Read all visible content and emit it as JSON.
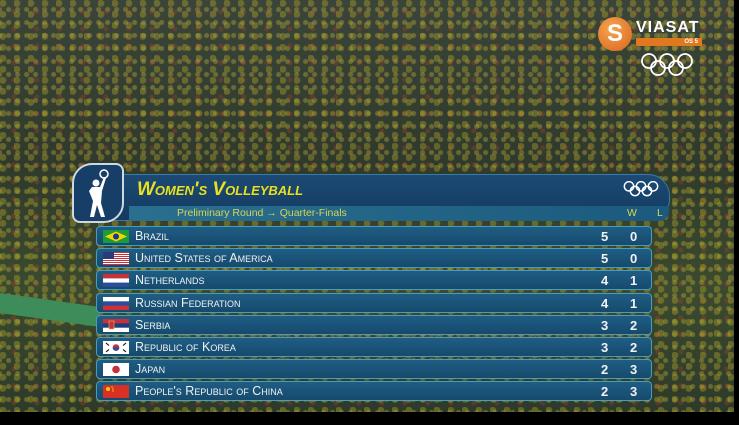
{
  "broadcaster": {
    "name": "VIASAT",
    "channel": "OS 5",
    "icon": "viasat-logo"
  },
  "graphic": {
    "title": "Women's Volleyball",
    "round": "Preliminary Round → Quarter-Finals",
    "col_w": "W",
    "col_l": "L",
    "icon": "volleyball-pictogram",
    "standings": [
      {
        "country": "Brazil",
        "flag": "brazil",
        "w": "5",
        "l": "0"
      },
      {
        "country": "United States of America",
        "flag": "usa",
        "w": "5",
        "l": "0"
      },
      {
        "country": "Netherlands",
        "flag": "netherlands",
        "w": "4",
        "l": "1"
      },
      {
        "country": "Russian Federation",
        "flag": "russia",
        "w": "4",
        "l": "1"
      },
      {
        "country": "Serbia",
        "flag": "serbia",
        "w": "3",
        "l": "2"
      },
      {
        "country": "Republic of Korea",
        "flag": "korea",
        "w": "3",
        "l": "2"
      },
      {
        "country": "Japan",
        "flag": "japan",
        "w": "2",
        "l": "3"
      },
      {
        "country": "People's Republic of China",
        "flag": "china",
        "w": "2",
        "l": "3"
      }
    ]
  },
  "colors": {
    "title": "#e8e020",
    "panel": "#1c4a74",
    "accent": "#e07820"
  }
}
